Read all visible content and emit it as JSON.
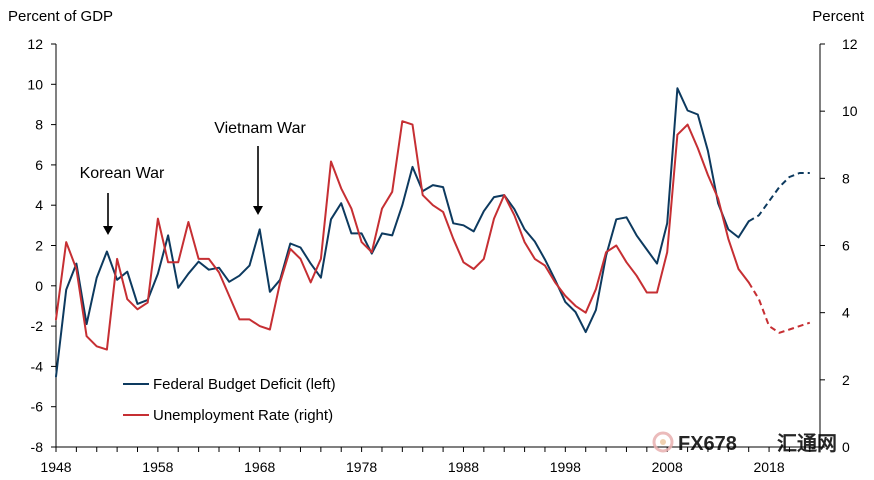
{
  "chart_data": {
    "type": "line",
    "title": "",
    "y_left_label": "Percent of GDP",
    "y_right_label": "Percent",
    "xlim": [
      1948,
      2023
    ],
    "ylim_left": [
      -8,
      12
    ],
    "ylim_right": [
      0,
      12
    ],
    "x_ticks": [
      "1948",
      "1958",
      "1968",
      "1978",
      "1988",
      "1998",
      "2008",
      "2018"
    ],
    "y_left_ticks": [
      "-8",
      "-6",
      "-4",
      "-2",
      "0",
      "2",
      "4",
      "6",
      "8",
      "10",
      "12"
    ],
    "y_right_ticks": [
      "0",
      "2",
      "4",
      "6",
      "8",
      "10",
      "12"
    ],
    "grid": false,
    "legend_position": "bottom-left",
    "series": [
      {
        "name": "Federal Budget Deficit (left)",
        "axis": "left",
        "color": "#0d3a5f",
        "x": [
          1948,
          1949,
          1950,
          1951,
          1952,
          1953,
          1954,
          1955,
          1956,
          1957,
          1958,
          1959,
          1960,
          1961,
          1962,
          1963,
          1964,
          1965,
          1966,
          1967,
          1968,
          1969,
          1970,
          1971,
          1972,
          1973,
          1974,
          1975,
          1976,
          1977,
          1978,
          1979,
          1980,
          1981,
          1982,
          1983,
          1984,
          1985,
          1986,
          1987,
          1988,
          1989,
          1990,
          1991,
          1992,
          1993,
          1994,
          1995,
          1996,
          1997,
          1998,
          1999,
          2000,
          2001,
          2002,
          2003,
          2004,
          2005,
          2006,
          2007,
          2008,
          2009,
          2010,
          2011,
          2012,
          2013,
          2014,
          2015,
          2016
        ],
        "values": [
          -4.5,
          -0.2,
          1.1,
          -1.9,
          0.4,
          1.7,
          0.3,
          0.7,
          -0.9,
          -0.7,
          0.6,
          2.5,
          -0.1,
          0.6,
          1.2,
          0.8,
          0.9,
          0.2,
          0.5,
          1.0,
          2.8,
          -0.3,
          0.3,
          2.1,
          1.9,
          1.1,
          0.4,
          3.3,
          4.1,
          2.6,
          2.6,
          1.6,
          2.6,
          2.5,
          4.0,
          5.9,
          4.7,
          5.0,
          4.9,
          3.1,
          3.0,
          2.7,
          3.7,
          4.4,
          4.5,
          3.8,
          2.8,
          2.2,
          1.3,
          0.3,
          -0.8,
          -1.3,
          -2.3,
          -1.2,
          1.5,
          3.3,
          3.4,
          2.5,
          1.8,
          1.1,
          3.1,
          9.8,
          8.7,
          8.5,
          6.7,
          4.1,
          2.8,
          2.4,
          3.2
        ],
        "projection_x": [
          2016,
          2017,
          2018,
          2019,
          2020,
          2021,
          2022
        ],
        "projection_values": [
          3.2,
          3.5,
          4.2,
          4.9,
          5.4,
          5.6,
          5.6
        ]
      },
      {
        "name": "Unemployment Rate (right)",
        "axis": "right",
        "color": "#c62f33",
        "x": [
          1948,
          1949,
          1950,
          1951,
          1952,
          1953,
          1954,
          1955,
          1956,
          1957,
          1958,
          1959,
          1960,
          1961,
          1962,
          1963,
          1964,
          1965,
          1966,
          1967,
          1968,
          1969,
          1970,
          1971,
          1972,
          1973,
          1974,
          1975,
          1976,
          1977,
          1978,
          1979,
          1980,
          1981,
          1982,
          1983,
          1984,
          1985,
          1986,
          1987,
          1988,
          1989,
          1990,
          1991,
          1992,
          1993,
          1994,
          1995,
          1996,
          1997,
          1998,
          1999,
          2000,
          2001,
          2002,
          2003,
          2004,
          2005,
          2006,
          2007,
          2008,
          2009,
          2010,
          2011,
          2012,
          2013,
          2014,
          2015,
          2016
        ],
        "values": [
          3.8,
          6.1,
          5.3,
          3.3,
          3.0,
          2.9,
          5.6,
          4.4,
          4.1,
          4.3,
          6.8,
          5.5,
          5.5,
          6.7,
          5.6,
          5.6,
          5.2,
          4.5,
          3.8,
          3.8,
          3.6,
          3.5,
          4.9,
          5.9,
          5.6,
          4.9,
          5.6,
          8.5,
          7.7,
          7.1,
          6.1,
          5.8,
          7.1,
          7.6,
          9.7,
          9.6,
          7.5,
          7.2,
          7.0,
          6.2,
          5.5,
          5.3,
          5.6,
          6.8,
          7.5,
          6.9,
          6.1,
          5.6,
          5.4,
          4.9,
          4.5,
          4.2,
          4.0,
          4.7,
          5.8,
          6.0,
          5.5,
          5.1,
          4.6,
          4.6,
          5.8,
          9.3,
          9.6,
          8.9,
          8.1,
          7.4,
          6.2,
          5.3,
          4.9
        ],
        "projection_x": [
          2016,
          2017,
          2018,
          2019,
          2020,
          2021,
          2022
        ],
        "projection_values": [
          4.9,
          4.4,
          3.6,
          3.4,
          3.5,
          3.6,
          3.7
        ]
      }
    ],
    "annotations": [
      {
        "text": "Korean War",
        "x": 1953
      },
      {
        "text": "Vietnam War",
        "x": 1968
      }
    ]
  },
  "watermark": {
    "text_latin": "FX678",
    "text_cn": "汇通网",
    "color": "#e3a8a8"
  }
}
